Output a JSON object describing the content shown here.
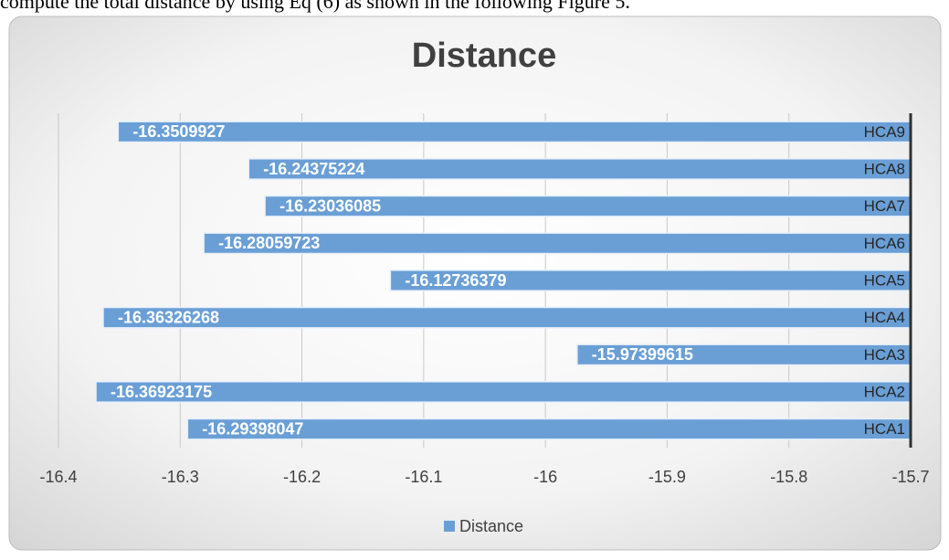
{
  "page_text": "compute the total distance by using Eq (6) as shown in the following Figure 5.",
  "chart_data": {
    "type": "bar",
    "orientation": "horizontal",
    "title": "Distance",
    "categories": [
      "HCA1",
      "HCA2",
      "HCA3",
      "HCA4",
      "HCA5",
      "HCA6",
      "HCA7",
      "HCA8",
      "HCA9"
    ],
    "series": [
      {
        "name": "Distance",
        "color": "#6a9fd6",
        "values": [
          -16.29398047,
          -16.36923175,
          -15.97399615,
          -16.36326268,
          -16.12736379,
          -16.28059723,
          -16.23036085,
          -16.24375224,
          -16.3509927
        ]
      }
    ],
    "xlim": [
      -16.4,
      -15.7
    ],
    "xticks": [
      -16.4,
      -16.3,
      -16.2,
      -16.1,
      -16,
      -15.9,
      -15.8,
      -15.7
    ],
    "grid": true,
    "legend": "bottom"
  }
}
